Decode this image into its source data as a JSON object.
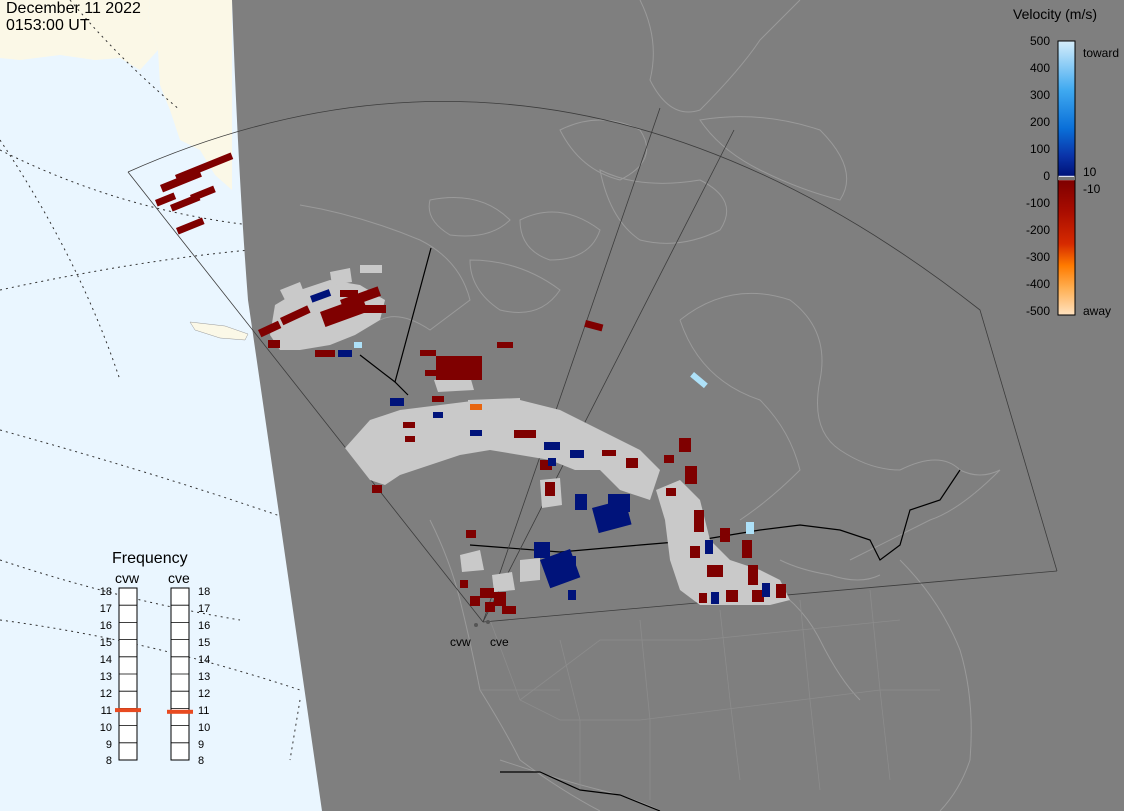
{
  "header": {
    "date": "December 11 2022",
    "time": "0153:00 UT"
  },
  "colorbar": {
    "title": "Velocity (m/s)",
    "ticks": [
      "500",
      "400",
      "300",
      "200",
      "100",
      "0",
      "-100",
      "-200",
      "-300",
      "-400",
      "-500"
    ],
    "inner_labels": [
      "10",
      "-10"
    ],
    "toward_label": "toward",
    "away_label": "away",
    "colors": {
      "toward_500": "#cfe9fb",
      "toward_300": "#1a8fe8",
      "toward_10": "#00137a",
      "zero": "#ffffff",
      "away_10": "#7f0000",
      "away_200": "#c81a00",
      "away_350": "#ff8800",
      "away_500": "#ffe2c0"
    }
  },
  "frequency": {
    "title": "Frequency",
    "sites": [
      {
        "name": "cvw",
        "value_mhz": 10.9
      },
      {
        "name": "cve",
        "value_mhz": 10.8
      }
    ],
    "scale_min": 8,
    "scale_max": 18,
    "ticks": [
      "18",
      "17",
      "16",
      "15",
      "14",
      "13",
      "12",
      "11",
      "10",
      "9",
      "8"
    ],
    "marker_color": "#e84a20"
  },
  "radar_sites": [
    {
      "name": "cvw"
    },
    {
      "name": "cve"
    }
  ],
  "map_colors": {
    "night_land": "#7f7f7f",
    "day_ocean": "#eaf6ff",
    "day_land": "#fbf8e7",
    "ground_scatter": "#c9c9c9"
  }
}
